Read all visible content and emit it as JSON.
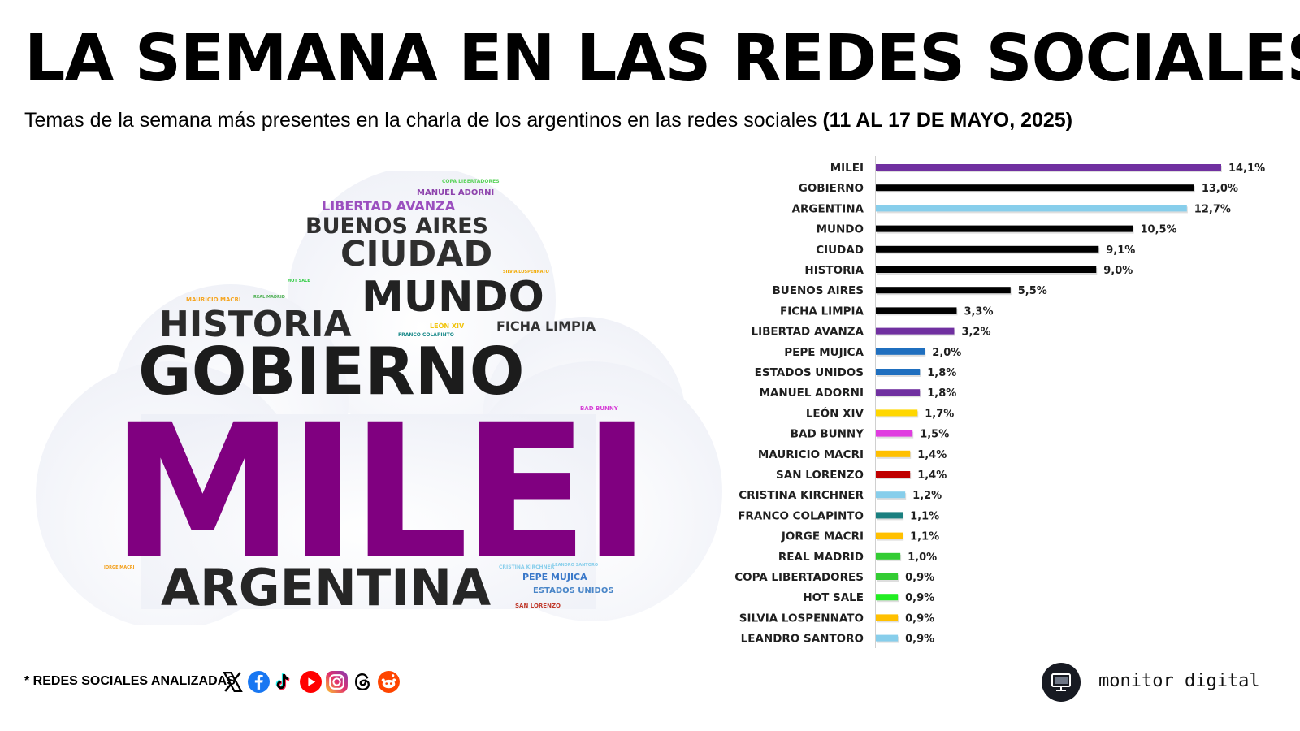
{
  "title": "LA SEMANA EN LAS REDES SOCIALES",
  "subtitle": {
    "text": "Temas de la semana más presentes en la charla de los argentinos en las redes sociales ",
    "period": "(11 AL 17 DE MAYO, 2025)"
  },
  "word_cloud": [
    {
      "text": "COPA LIBERTADORES",
      "color": "#5bd35b"
    },
    {
      "text": "MANUEL ADORNI",
      "color": "#8e44ad"
    },
    {
      "text": "LIBERTAD AVANZA",
      "color": "#9b4fbf"
    },
    {
      "text": "BUENOS AIRES",
      "color": "#2f2f2f"
    },
    {
      "text": "CIUDAD",
      "color": "#2f2f2f"
    },
    {
      "text": "SILVIA LOSPENNATO",
      "color": "#f2a900"
    },
    {
      "text": "HOT SALE",
      "color": "#2ecc40"
    },
    {
      "text": "MUNDO",
      "color": "#222222"
    },
    {
      "text": "MAURICIO MACRI",
      "color": "#f5a623"
    },
    {
      "text": "REAL MADRID",
      "color": "#4caf50"
    },
    {
      "text": "HISTORIA",
      "color": "#2b2b2b"
    },
    {
      "text": "LEÓN XIV",
      "color": "#f1c40f"
    },
    {
      "text": "FICHA LIMPIA",
      "color": "#333333"
    },
    {
      "text": "FRANCO COLAPINTO",
      "color": "#1a8a8a"
    },
    {
      "text": "GOBIERNO",
      "color": "#1c1c1c"
    },
    {
      "text": "BAD BUNNY",
      "color": "#d63fd6"
    },
    {
      "text": "MILEI",
      "color": "#800080"
    },
    {
      "text": "JORGE MACRI",
      "color": "#f39c12"
    },
    {
      "text": "CRISTINA KIRCHNER",
      "color": "#87ceeb"
    },
    {
      "text": "LEANDRO SANTORO",
      "color": "#87ceeb"
    },
    {
      "text": "PEPE MUJICA",
      "color": "#3a78c9"
    },
    {
      "text": "ARGENTINA",
      "color": "#262626"
    },
    {
      "text": "ESTADOS UNIDOS",
      "color": "#4a86c8"
    },
    {
      "text": "SAN LORENZO",
      "color": "#c0392b"
    }
  ],
  "chart_data": {
    "type": "bar",
    "orientation": "horizontal",
    "categories": [
      "MILEI",
      "GOBIERNO",
      "ARGENTINA",
      "MUNDO",
      "CIUDAD",
      "HISTORIA",
      "BUENOS AIRES",
      "FICHA LIMPIA",
      "LIBERTAD AVANZA",
      "PEPE MUJICA",
      "ESTADOS UNIDOS",
      "MANUEL ADORNI",
      "LEÓN XIV",
      "BAD BUNNY",
      "MAURICIO MACRI",
      "SAN LORENZO",
      "CRISTINA KIRCHNER",
      "FRANCO COLAPINTO",
      "JORGE MACRI",
      "REAL MADRID",
      "COPA LIBERTADORES",
      "HOT SALE",
      "SILVIA LOSPENNATO",
      "LEANDRO SANTORO"
    ],
    "values": [
      14.1,
      13.0,
      12.7,
      10.5,
      9.1,
      9.0,
      5.5,
      3.3,
      3.2,
      2.0,
      1.8,
      1.8,
      1.7,
      1.5,
      1.4,
      1.4,
      1.2,
      1.1,
      1.1,
      1.0,
      0.9,
      0.9,
      0.9,
      0.9
    ],
    "value_labels": [
      "14,1%",
      "13,0%",
      "12,7%",
      "10,5%",
      "9,1%",
      "9,0%",
      "5,5%",
      "3,3%",
      "3,2%",
      "2,0%",
      "1,8%",
      "1,8%",
      "1,7%",
      "1,5%",
      "1,4%",
      "1,4%",
      "1,2%",
      "1,1%",
      "1,1%",
      "1,0%",
      "0,9%",
      "0,9%",
      "0,9%",
      "0,9%"
    ],
    "colors": [
      "#7030a0",
      "#000000",
      "#87ceeb",
      "#000000",
      "#000000",
      "#000000",
      "#000000",
      "#000000",
      "#7030a0",
      "#1f6fbf",
      "#1f6fbf",
      "#7030a0",
      "#ffd700",
      "#e03de0",
      "#ffc000",
      "#c00000",
      "#87ceeb",
      "#1a7f7f",
      "#ffc000",
      "#33cc33",
      "#33cc33",
      "#22ee22",
      "#ffc000",
      "#87ceeb"
    ],
    "xlim": [
      0,
      14.1
    ],
    "unit": "%",
    "title": "",
    "xlabel": "",
    "ylabel": "",
    "grid": false,
    "legend": "none"
  },
  "footer": {
    "note": "* REDES SOCIALES ANALIZADAS",
    "social_icons": [
      "x-icon",
      "facebook-icon",
      "tiktok-icon",
      "youtube-icon",
      "instagram-icon",
      "threads-icon",
      "reddit-icon"
    ],
    "brand": "monitor digital"
  }
}
